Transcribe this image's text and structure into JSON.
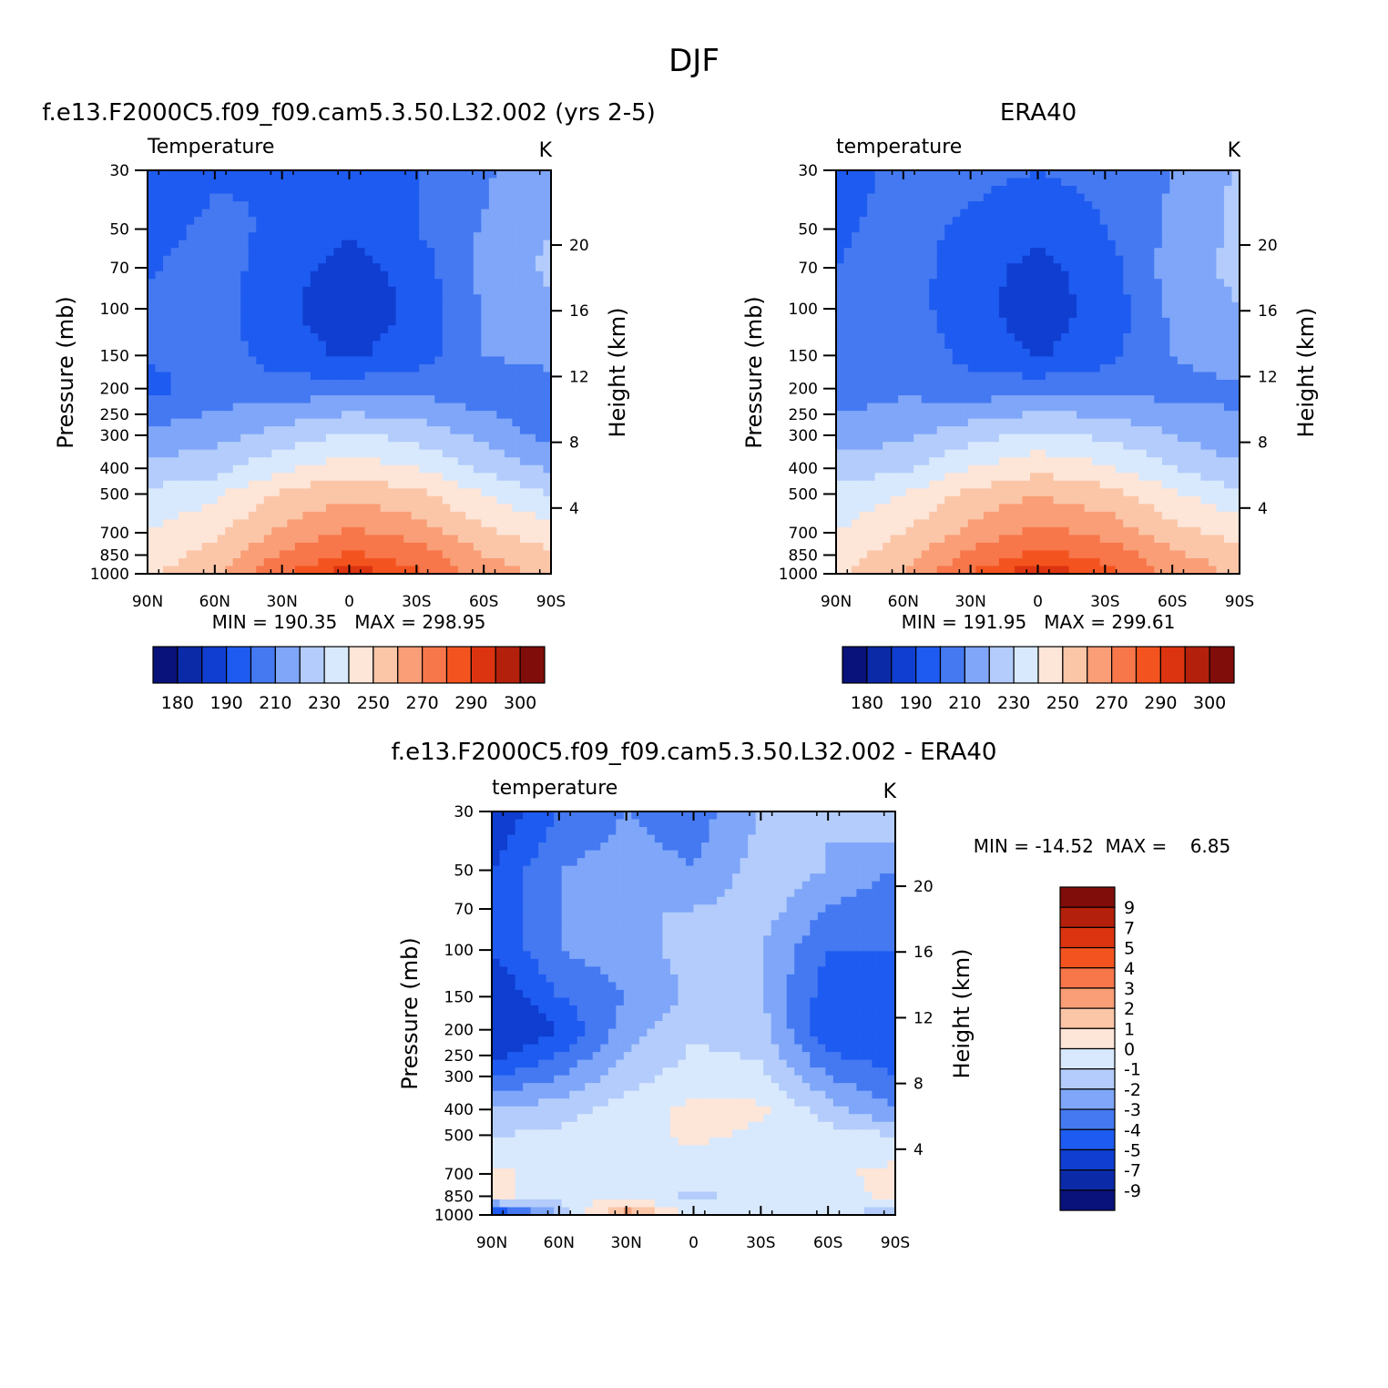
{
  "title": "DJF",
  "palette": {
    "temp_levels": [
      "#08127a",
      "#0b2aa8",
      "#0f3ed0",
      "#1e5bf0",
      "#4479f2",
      "#7fa6f8",
      "#b3ccfb",
      "#d8e9fd",
      "#fde5d8",
      "#fbc6a8",
      "#f99e76",
      "#f7764a",
      "#f3541f",
      "#dc3410",
      "#b3200c",
      "#800d0a"
    ],
    "diff_levels": [
      "#08127a",
      "#0b2aa8",
      "#0f3ed0",
      "#1e5bf0",
      "#4479f2",
      "#7fa6f8",
      "#b3ccfb",
      "#d8e9fd",
      "#fde5d8",
      "#fbc6a8",
      "#f99e76",
      "#f7764a",
      "#f3541f",
      "#dc3410",
      "#b3200c",
      "#800d0a"
    ]
  },
  "panels": [
    {
      "heading": "f.e13.F2000C5.f09_f09.cam5.3.50.L32.002 (yrs 2-5)",
      "variable": "Temperature",
      "units": "K",
      "ylabel": "Pressure (mb)",
      "ylabel_right": "Height (km)",
      "stats": "MIN = 190.35   MAX = 298.95",
      "colorbar_labels": [
        "180",
        "190",
        "210",
        "230",
        "250",
        "270",
        "290",
        "300"
      ]
    },
    {
      "heading": "ERA40",
      "variable": "temperature",
      "units": "K",
      "ylabel": "Pressure (mb)",
      "ylabel_right": "Height (km)",
      "stats": "MIN = 191.95   MAX = 299.61",
      "colorbar_labels": [
        "180",
        "190",
        "210",
        "230",
        "250",
        "270",
        "290",
        "300"
      ]
    },
    {
      "heading": "f.e13.F2000C5.f09_f09.cam5.3.50.L32.002 - ERA40",
      "variable": "temperature",
      "units": "K",
      "ylabel": "Pressure (mb)",
      "ylabel_right": "Height (km)",
      "stats": "MIN = -14.52  MAX =    6.85",
      "colorbar_labels": [
        "9",
        "7",
        "5",
        "4",
        "3",
        "2",
        "1",
        "0",
        "-1",
        "-2",
        "-3",
        "-4",
        "-5",
        "-7",
        "-9"
      ]
    }
  ],
  "chart_data": [
    {
      "type": "heatmap",
      "title": "Temperature",
      "xlabel": "",
      "ylabel": "Pressure (mb)",
      "ylabel_right": "Height (km)",
      "x_ticks": [
        "90N",
        "60N",
        "30N",
        "0",
        "30S",
        "60S",
        "90S"
      ],
      "y_ticks": [
        30,
        50,
        70,
        100,
        150,
        200,
        250,
        300,
        400,
        500,
        700,
        850,
        1000
      ],
      "y_scale": "log",
      "y_range": [
        1000,
        30
      ],
      "height_ticks_km": [
        4,
        8,
        12,
        16,
        20
      ],
      "x": [
        -90,
        -60,
        -30,
        0,
        30,
        60,
        90
      ],
      "y": [
        30,
        50,
        70,
        100,
        150,
        200,
        300,
        400,
        500,
        700,
        850,
        1000
      ],
      "z": [
        [
          200,
          208,
          210,
          208,
          210,
          218,
          230
        ],
        [
          205,
          213,
          208,
          201,
          210,
          221,
          230
        ],
        [
          209,
          215,
          204,
          196,
          204,
          224,
          232
        ],
        [
          212,
          214,
          202,
          194,
          202,
          221,
          228
        ],
        [
          211,
          215,
          205,
          198,
          205,
          220,
          225
        ],
        [
          206,
          215,
          214,
          216,
          218,
          212,
          213
        ],
        [
          223,
          226,
          234,
          242,
          236,
          228,
          216
        ],
        [
          233,
          236,
          248,
          256,
          250,
          238,
          228
        ],
        [
          242,
          248,
          262,
          268,
          262,
          250,
          240
        ],
        [
          250,
          258,
          272,
          282,
          276,
          262,
          255
        ],
        [
          255,
          264,
          282,
          292,
          286,
          270,
          262
        ],
        [
          258,
          268,
          290,
          298,
          292,
          276,
          266
        ]
      ],
      "levels": [
        180,
        190,
        200,
        210,
        220,
        230,
        240,
        250,
        260,
        270,
        280,
        290,
        295,
        300
      ],
      "min": 190.35,
      "max": 298.95,
      "units": "K"
    },
    {
      "type": "heatmap",
      "title": "temperature",
      "xlabel": "",
      "ylabel": "Pressure (mb)",
      "ylabel_right": "Height (km)",
      "x_ticks": [
        "90N",
        "60N",
        "30N",
        "0",
        "30S",
        "60S",
        "90S"
      ],
      "y_ticks": [
        30,
        50,
        70,
        100,
        150,
        200,
        250,
        300,
        400,
        500,
        700,
        850,
        1000
      ],
      "y_scale": "log",
      "y_range": [
        1000,
        30
      ],
      "height_ticks_km": [
        4,
        8,
        12,
        16,
        20
      ],
      "x": [
        -90,
        -60,
        -30,
        0,
        30,
        60,
        90
      ],
      "y": [
        30,
        50,
        70,
        100,
        150,
        200,
        300,
        400,
        500,
        700,
        850,
        1000
      ],
      "z": [
        [
          205,
          213,
          213,
          210,
          213,
          220,
          232
        ],
        [
          208,
          214,
          208,
          202,
          210,
          222,
          232
        ],
        [
          210,
          215,
          204,
          197,
          205,
          225,
          233
        ],
        [
          213,
          215,
          203,
          195,
          203,
          222,
          230
        ],
        [
          215,
          217,
          207,
          199,
          206,
          220,
          226
        ],
        [
          214,
          218,
          214,
          216,
          218,
          216,
          218
        ],
        [
          225,
          228,
          236,
          243,
          238,
          230,
          222
        ],
        [
          234,
          238,
          250,
          257,
          252,
          240,
          232
        ],
        [
          243,
          250,
          263,
          269,
          264,
          252,
          242
        ],
        [
          250,
          260,
          273,
          283,
          277,
          264,
          256
        ],
        [
          255,
          266,
          283,
          293,
          287,
          272,
          264
        ],
        [
          258,
          270,
          291,
          299,
          293,
          278,
          268
        ]
      ],
      "levels": [
        180,
        190,
        200,
        210,
        220,
        230,
        240,
        250,
        260,
        270,
        280,
        290,
        295,
        300
      ],
      "min": 191.95,
      "max": 299.61,
      "units": "K"
    },
    {
      "type": "heatmap",
      "title": "temperature",
      "xlabel": "",
      "ylabel": "Pressure (mb)",
      "ylabel_right": "Height (km)",
      "x_ticks": [
        "90N",
        "60N",
        "30N",
        "0",
        "30S",
        "60S",
        "90S"
      ],
      "y_ticks": [
        30,
        50,
        70,
        100,
        150,
        200,
        250,
        300,
        400,
        500,
        700,
        850,
        1000
      ],
      "y_scale": "log",
      "y_range": [
        1000,
        30
      ],
      "height_ticks_km": [
        4,
        8,
        12,
        16,
        20
      ],
      "x": [
        -90,
        -60,
        -30,
        0,
        30,
        60,
        90
      ],
      "y": [
        30,
        50,
        70,
        100,
        150,
        200,
        300,
        400,
        500,
        700,
        850,
        1000
      ],
      "z": [
        [
          -6,
          -4,
          -3,
          -3.5,
          -2,
          -2,
          -1
        ],
        [
          -5,
          -3,
          -2.5,
          -3,
          -1.5,
          -2,
          -3
        ],
        [
          -5,
          -3,
          -2,
          -2,
          -1.5,
          -3,
          -4
        ],
        [
          -5,
          -3,
          -2.5,
          -1.5,
          -2,
          -4,
          -4
        ],
        [
          -6,
          -4,
          -3,
          -1.8,
          -2,
          -4.5,
          -4
        ],
        [
          -7,
          -5,
          -2.5,
          -1.2,
          -1.5,
          -5,
          -5
        ],
        [
          -4,
          -3,
          -1.5,
          -0.5,
          -0.8,
          -3,
          -4
        ],
        [
          -2,
          -1.5,
          -0.5,
          0.3,
          0.2,
          -1.5,
          -3
        ],
        [
          -1,
          -0.8,
          -0.3,
          0.2,
          -0.2,
          -0.6,
          -1
        ],
        [
          0.3,
          -0.5,
          -0.5,
          -0.5,
          -0.5,
          -0.3,
          0.4
        ],
        [
          0.2,
          -0.4,
          -0.5,
          -1.2,
          -0.7,
          -0.4,
          0.2
        ],
        [
          -6,
          -2,
          3,
          -0.5,
          -0.4,
          -0.2,
          -2
        ]
      ],
      "levels": [
        -9,
        -7,
        -5,
        -4,
        -3,
        -2,
        -1,
        0,
        1,
        2,
        3,
        4,
        5,
        7,
        9
      ],
      "min": -14.52,
      "max": 6.85,
      "units": "K"
    }
  ]
}
